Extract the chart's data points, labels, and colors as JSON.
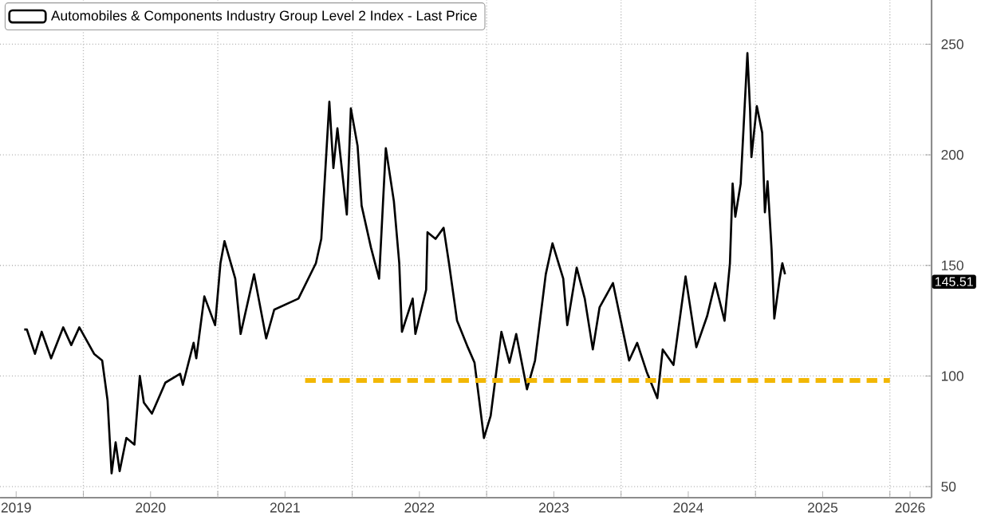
{
  "chart_data": {
    "type": "line",
    "xlim": [
      2019.38,
      2026.31
    ],
    "ylim": [
      45,
      270
    ],
    "xticks": [
      {
        "value": 2019.5,
        "label": "2019"
      },
      {
        "value": 2020.5,
        "label": "2020"
      },
      {
        "value": 2021.5,
        "label": "2021"
      },
      {
        "value": 2022.5,
        "label": "2022"
      },
      {
        "value": 2023.5,
        "label": "2023"
      },
      {
        "value": 2024.5,
        "label": "2024"
      },
      {
        "value": 2025.5,
        "label": "2025"
      },
      {
        "value": 2026.15,
        "label": "2026"
      },
      {
        "value": 2020,
        "label": null
      },
      {
        "value": 2021,
        "label": null
      },
      {
        "value": 2022,
        "label": null
      },
      {
        "value": 2023,
        "label": null
      },
      {
        "value": 2024,
        "label": null
      },
      {
        "value": 2025,
        "label": null
      },
      {
        "value": 2026,
        "label": null
      }
    ],
    "yticks": [
      50,
      100,
      150,
      200,
      250
    ],
    "grid": true,
    "legend": "top left",
    "annotations": [
      "145.51"
    ],
    "series": [
      {
        "name": "Automobiles & Components Industry Group Level 2 Index - Last Price",
        "color": "#000000",
        "x": [
          2019.56,
          2019.58,
          2019.64,
          2019.69,
          2019.76,
          2019.85,
          2019.91,
          2019.97,
          2020.08,
          2020.14,
          2020.18,
          2020.21,
          2020.24,
          2020.27,
          2020.32,
          2020.38,
          2020.42,
          2020.45,
          2020.51,
          2020.61,
          2020.72,
          2020.74,
          2020.82,
          2020.84,
          2020.9,
          2020.98,
          2021.02,
          2021.05,
          2021.13,
          2021.17,
          2021.27,
          2021.36,
          2021.42,
          2021.6,
          2021.73,
          2021.77,
          2021.83,
          2021.86,
          2021.89,
          2021.96,
          2021.99,
          2022.04,
          2022.07,
          2022.14,
          2022.2,
          2022.25,
          2022.31,
          2022.35,
          2022.37,
          2022.45,
          2022.47,
          2022.55,
          2022.56,
          2022.62,
          2022.68,
          2022.72,
          2022.78,
          2022.86,
          2022.91,
          2022.98,
          2023.03,
          2023.11,
          2023.17,
          2023.22,
          2023.3,
          2023.36,
          2023.44,
          2023.49,
          2023.57,
          2023.6,
          2023.67,
          2023.73,
          2023.79,
          2023.84,
          2023.94,
          2024.06,
          2024.12,
          2024.19,
          2024.27,
          2024.31,
          2024.39,
          2024.48,
          2024.56,
          2024.64,
          2024.7,
          2024.77,
          2024.81,
          2024.83,
          2024.85,
          2024.89,
          2024.94,
          2024.96,
          2024.97,
          2025.01,
          2025.05,
          2025.07,
          2025.09,
          2025.12,
          2025.14,
          2025.18,
          2025.2,
          2025.22
        ],
        "values": [
          121,
          121,
          110,
          120,
          108,
          122,
          114,
          122,
          110,
          107,
          89,
          56,
          70,
          57,
          72,
          69,
          100,
          88,
          83,
          97,
          101,
          96,
          115,
          108,
          136,
          123,
          151,
          161,
          144,
          119,
          146,
          117,
          130,
          135,
          151,
          162,
          224,
          194,
          212,
          173,
          221,
          204,
          177,
          158,
          144,
          203,
          179,
          151,
          120,
          135,
          119,
          139,
          165,
          162,
          167,
          151,
          125,
          113,
          106,
          72,
          82,
          120,
          106,
          119,
          94,
          107,
          146,
          160,
          144,
          123,
          149,
          135,
          112,
          131,
          142,
          107,
          115,
          102,
          90,
          112,
          105,
          145,
          113,
          127,
          142,
          125,
          151,
          187,
          172,
          187,
          246,
          220,
          199,
          222,
          210,
          174,
          188,
          157,
          126,
          144,
          151,
          146
        ]
      },
      {
        "color": "#f2b705",
        "line_style": "dashed",
        "x": [
          2021.65,
          2026.0
        ],
        "values": [
          98,
          98
        ]
      }
    ]
  }
}
